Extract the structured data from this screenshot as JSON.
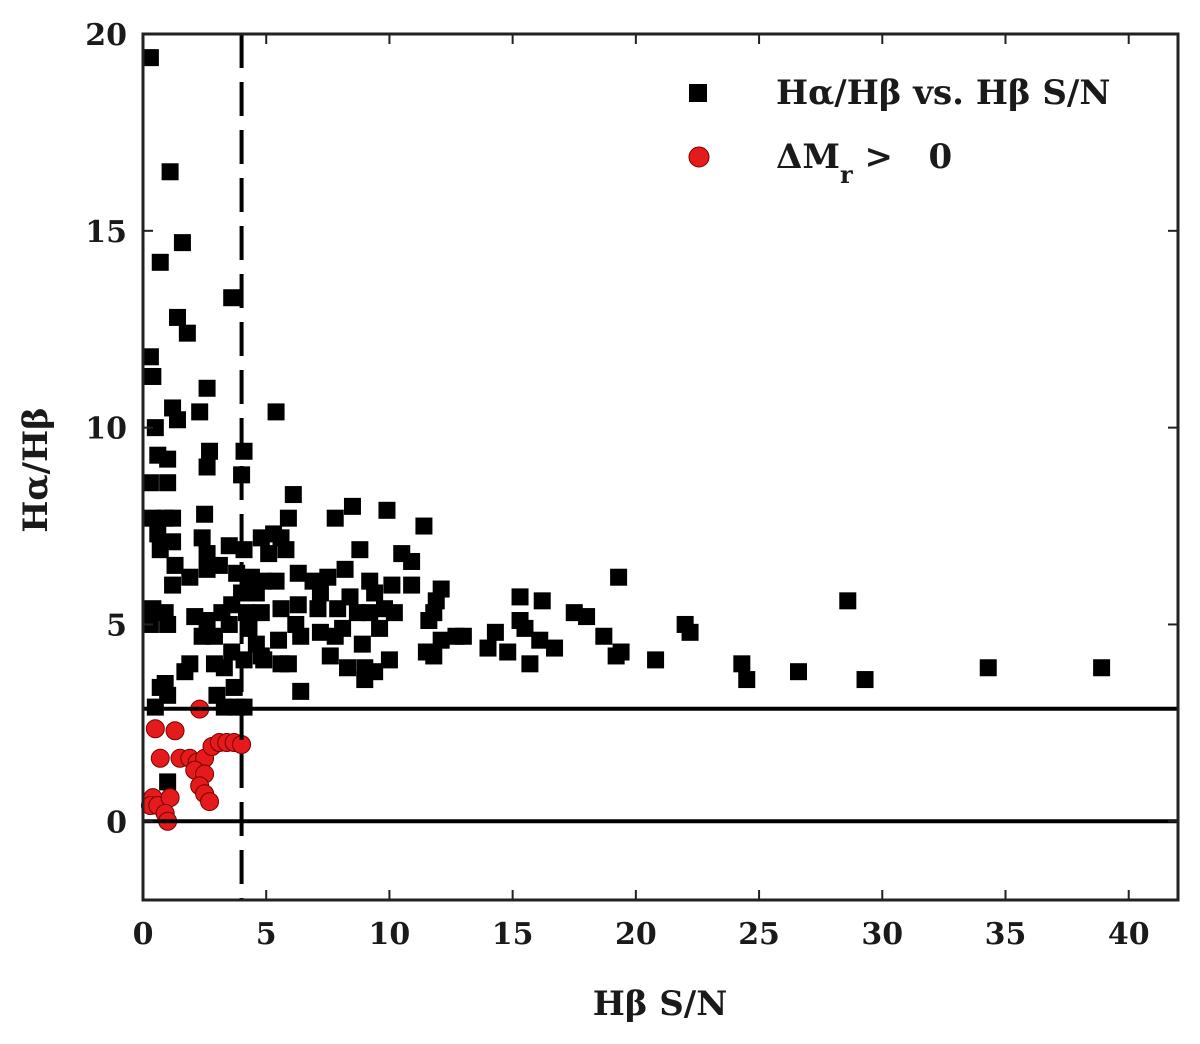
{
  "chart_data": {
    "type": "scatter",
    "xlabel": "Hβ S/N",
    "ylabel": "Hα/Hβ",
    "xlim": [
      0,
      42
    ],
    "ylim": [
      -2,
      20
    ],
    "xticks": [
      0,
      5,
      10,
      15,
      20,
      25,
      30,
      35,
      40
    ],
    "yticks": [
      0,
      5,
      10,
      15,
      20
    ],
    "grid": false,
    "legend_position": "top-right",
    "hlines": [
      2.86,
      0
    ],
    "vlines": [
      {
        "x": 4,
        "style": "dashed"
      }
    ],
    "series": [
      {
        "name": "Hα/Hβ vs. Hβ S/N",
        "marker": "square",
        "color": "#000000",
        "points": [
          [
            0.3,
            19.4
          ],
          [
            1.1,
            16.5
          ],
          [
            1.6,
            14.7
          ],
          [
            0.7,
            14.2
          ],
          [
            3.6,
            13.3
          ],
          [
            1.4,
            12.8
          ],
          [
            1.8,
            12.4
          ],
          [
            0.3,
            11.8
          ],
          [
            0.4,
            11.3
          ],
          [
            2.6,
            11.0
          ],
          [
            1.2,
            10.5
          ],
          [
            1.4,
            10.2
          ],
          [
            2.3,
            10.4
          ],
          [
            5.4,
            10.4
          ],
          [
            0.5,
            10.0
          ],
          [
            0.6,
            9.3
          ],
          [
            1.0,
            9.2
          ],
          [
            2.7,
            9.4
          ],
          [
            2.6,
            9.0
          ],
          [
            4.1,
            9.4
          ],
          [
            4.0,
            8.8
          ],
          [
            0.3,
            8.6
          ],
          [
            1.0,
            8.6
          ],
          [
            6.1,
            8.3
          ],
          [
            0.4,
            7.7
          ],
          [
            0.9,
            7.7
          ],
          [
            1.2,
            7.7
          ],
          [
            2.5,
            7.8
          ],
          [
            5.9,
            7.7
          ],
          [
            7.8,
            7.7
          ],
          [
            8.5,
            8.0
          ],
          [
            9.9,
            7.9
          ],
          [
            11.4,
            7.5
          ],
          [
            0.6,
            7.3
          ],
          [
            1.2,
            7.1
          ],
          [
            0.7,
            6.9
          ],
          [
            2.4,
            7.2
          ],
          [
            2.6,
            6.8
          ],
          [
            3.5,
            7.0
          ],
          [
            4.1,
            6.9
          ],
          [
            4.8,
            7.2
          ],
          [
            5.3,
            7.3
          ],
          [
            5.6,
            7.2
          ],
          [
            5.8,
            6.9
          ],
          [
            5.1,
            6.8
          ],
          [
            8.8,
            6.9
          ],
          [
            10.5,
            6.8
          ],
          [
            10.9,
            6.6
          ],
          [
            1.3,
            6.5
          ],
          [
            2.6,
            6.4
          ],
          [
            3.1,
            6.5
          ],
          [
            3.8,
            6.3
          ],
          [
            1.9,
            6.2
          ],
          [
            4.4,
            6.2
          ],
          [
            4.9,
            6.1
          ],
          [
            5.4,
            6.1
          ],
          [
            6.3,
            6.3
          ],
          [
            6.9,
            6.1
          ],
          [
            7.5,
            6.2
          ],
          [
            8.2,
            6.4
          ],
          [
            9.2,
            6.1
          ],
          [
            10.1,
            6.0
          ],
          [
            10.9,
            6.0
          ],
          [
            1.2,
            6.0
          ],
          [
            4.0,
            5.8
          ],
          [
            4.6,
            5.8
          ],
          [
            7.2,
            5.8
          ],
          [
            8.4,
            5.7
          ],
          [
            9.4,
            5.8
          ],
          [
            12.1,
            5.9
          ],
          [
            19.3,
            6.2
          ],
          [
            0.4,
            5.4
          ],
          [
            0.9,
            5.3
          ],
          [
            2.1,
            5.2
          ],
          [
            3.2,
            5.3
          ],
          [
            3.6,
            5.5
          ],
          [
            4.2,
            5.3
          ],
          [
            4.8,
            5.3
          ],
          [
            5.6,
            5.4
          ],
          [
            6.3,
            5.5
          ],
          [
            7.1,
            5.4
          ],
          [
            7.9,
            5.4
          ],
          [
            8.7,
            5.3
          ],
          [
            9.2,
            5.3
          ],
          [
            9.8,
            5.4
          ],
          [
            10.2,
            5.3
          ],
          [
            11.8,
            5.3
          ],
          [
            11.9,
            5.6
          ],
          [
            15.3,
            5.7
          ],
          [
            16.2,
            5.6
          ],
          [
            17.5,
            5.3
          ],
          [
            18.0,
            5.2
          ],
          [
            28.6,
            5.6
          ],
          [
            0.3,
            5.0
          ],
          [
            1.0,
            5.0
          ],
          [
            2.6,
            5.1
          ],
          [
            3.5,
            5.0
          ],
          [
            4.3,
            4.9
          ],
          [
            6.2,
            5.0
          ],
          [
            7.2,
            4.8
          ],
          [
            8.1,
            4.9
          ],
          [
            9.6,
            4.9
          ],
          [
            11.6,
            5.1
          ],
          [
            15.3,
            5.1
          ],
          [
            15.5,
            4.9
          ],
          [
            22.0,
            5.0
          ],
          [
            22.2,
            4.8
          ],
          [
            2.4,
            4.7
          ],
          [
            2.9,
            4.7
          ],
          [
            4.6,
            4.5
          ],
          [
            5.5,
            4.6
          ],
          [
            6.4,
            4.7
          ],
          [
            7.8,
            4.7
          ],
          [
            8.9,
            4.5
          ],
          [
            12.7,
            4.7
          ],
          [
            13.0,
            4.7
          ],
          [
            14.3,
            4.8
          ],
          [
            16.1,
            4.6
          ],
          [
            18.7,
            4.7
          ],
          [
            12.1,
            4.6
          ],
          [
            3.6,
            4.3
          ],
          [
            4.1,
            4.1
          ],
          [
            4.8,
            4.2
          ],
          [
            5.6,
            4.0
          ],
          [
            7.6,
            4.2
          ],
          [
            8.3,
            3.9
          ],
          [
            9.4,
            3.8
          ],
          [
            10.0,
            4.1
          ],
          [
            11.5,
            4.3
          ],
          [
            11.8,
            4.2
          ],
          [
            14.0,
            4.4
          ],
          [
            14.8,
            4.3
          ],
          [
            16.7,
            4.4
          ],
          [
            19.2,
            4.2
          ],
          [
            19.4,
            4.3
          ],
          [
            20.8,
            4.1
          ],
          [
            1.9,
            4.0
          ],
          [
            1.7,
            3.8
          ],
          [
            2.9,
            4.0
          ],
          [
            3.3,
            3.9
          ],
          [
            4.9,
            4.1
          ],
          [
            5.9,
            4.0
          ],
          [
            9.0,
            3.9
          ],
          [
            15.7,
            4.0
          ],
          [
            24.3,
            4.0
          ],
          [
            0.7,
            3.4
          ],
          [
            0.9,
            3.5
          ],
          [
            1.0,
            3.2
          ],
          [
            3.0,
            3.2
          ],
          [
            3.7,
            3.4
          ],
          [
            6.4,
            3.3
          ],
          [
            9.0,
            3.6
          ],
          [
            24.5,
            3.6
          ],
          [
            26.6,
            3.8
          ],
          [
            29.3,
            3.6
          ],
          [
            34.3,
            3.9
          ],
          [
            38.9,
            3.9
          ],
          [
            0.5,
            2.9
          ],
          [
            3.3,
            2.9
          ],
          [
            3.8,
            2.9
          ],
          [
            4.1,
            2.9
          ],
          [
            1.0,
            1.0
          ]
        ]
      },
      {
        "name": "ΔMr > 0",
        "marker": "circle",
        "color": "#e41a1c",
        "points": [
          [
            2.3,
            2.85
          ],
          [
            0.5,
            2.35
          ],
          [
            1.3,
            2.3
          ],
          [
            0.7,
            1.6
          ],
          [
            1.5,
            1.6
          ],
          [
            1.9,
            1.6
          ],
          [
            2.2,
            1.5
          ],
          [
            2.5,
            1.6
          ],
          [
            2.8,
            1.9
          ],
          [
            3.1,
            2.0
          ],
          [
            3.4,
            2.0
          ],
          [
            3.7,
            2.0
          ],
          [
            4.0,
            1.95
          ],
          [
            2.1,
            1.3
          ],
          [
            2.5,
            1.2
          ],
          [
            2.3,
            0.9
          ],
          [
            2.5,
            0.7
          ],
          [
            2.7,
            0.5
          ],
          [
            0.4,
            0.6
          ],
          [
            0.3,
            0.4
          ],
          [
            0.6,
            0.4
          ],
          [
            1.1,
            0.6
          ],
          [
            0.9,
            0.2
          ],
          [
            1.0,
            0.0
          ]
        ]
      }
    ]
  },
  "legend": {
    "entries": [
      {
        "label": "Hα/Hβ vs. Hβ S/N"
      },
      {
        "label": "ΔMr > 0",
        "label_prefix": "ΔM",
        "label_sub": "r",
        "label_rest": " >   0"
      }
    ]
  }
}
